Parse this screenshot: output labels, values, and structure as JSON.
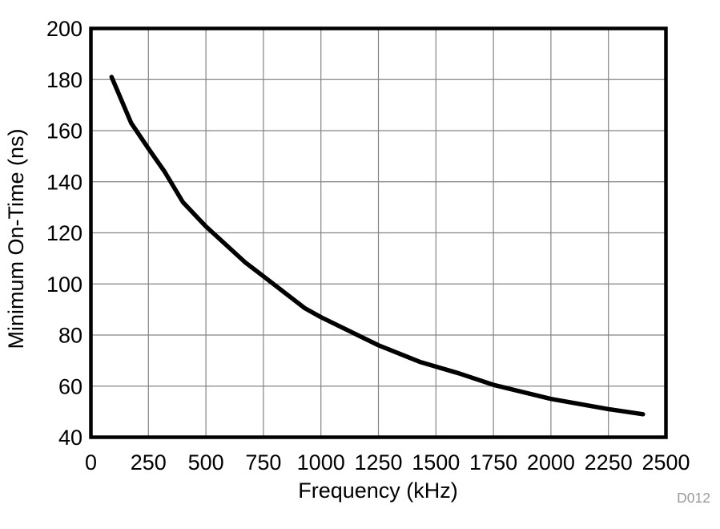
{
  "figure": {
    "background": "#ffffff"
  },
  "chart_data": {
    "type": "line",
    "title": "",
    "xlabel": "Frequency (kHz)",
    "ylabel": "Minimum On-Time (ns)",
    "xlim": [
      0,
      2500
    ],
    "ylim": [
      40,
      200
    ],
    "x_ticks": [
      0,
      250,
      500,
      750,
      1000,
      1250,
      1500,
      1750,
      2000,
      2250,
      2500
    ],
    "y_ticks": [
      40,
      60,
      80,
      100,
      120,
      140,
      160,
      180,
      200
    ],
    "grid": true,
    "legend": false,
    "watermark": "D012",
    "series": [
      {
        "name": "Minimum On-Time",
        "color": "#000000",
        "x": [
          90,
          175,
          250,
          320,
          400,
          500,
          670,
          750,
          930,
          1000,
          1250,
          1430,
          1600,
          1750,
          2000,
          2250,
          2400
        ],
        "y": [
          181,
          163,
          153,
          144,
          132,
          122.5,
          108.5,
          103,
          90.5,
          87,
          76,
          69.5,
          65,
          60.5,
          55,
          51,
          49
        ]
      }
    ],
    "colors": {
      "grid": "#848484",
      "axis": "#000000",
      "curve": "#000000",
      "text": "#000000",
      "watermark": "#9a9a9a"
    }
  }
}
